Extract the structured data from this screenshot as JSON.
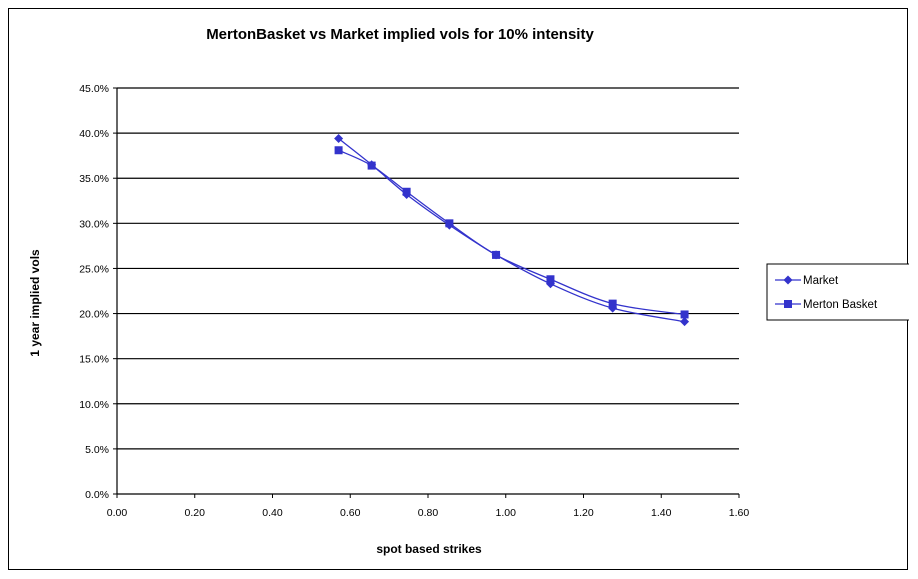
{
  "chart_data": {
    "type": "line",
    "title": "MertonBasket vs Market implied vols for 10% intensity",
    "xlabel": "spot based strikes",
    "ylabel": "1 year implied vols",
    "xlim": [
      0,
      1.6
    ],
    "ylim": [
      0,
      0.45
    ],
    "x_ticks": [
      "0.00",
      "0.20",
      "0.40",
      "0.60",
      "0.80",
      "1.00",
      "1.20",
      "1.40",
      "1.60"
    ],
    "y_ticks": [
      "0.0%",
      "5.0%",
      "10.0%",
      "15.0%",
      "20.0%",
      "25.0%",
      "30.0%",
      "35.0%",
      "40.0%",
      "45.0%"
    ],
    "grid": "horizontal",
    "legend_position": "right",
    "series_color": "#3333cc",
    "series": [
      {
        "name": "Market",
        "marker": "diamond",
        "x": [
          0.57,
          0.655,
          0.745,
          0.855,
          0.975,
          1.115,
          1.275,
          1.46
        ],
        "values": [
          0.394,
          0.365,
          0.332,
          0.298,
          0.265,
          0.233,
          0.206,
          0.191
        ]
      },
      {
        "name": "Merton Basket",
        "marker": "square",
        "x": [
          0.57,
          0.655,
          0.745,
          0.855,
          0.975,
          1.115,
          1.275,
          1.46
        ],
        "values": [
          0.381,
          0.364,
          0.335,
          0.3,
          0.265,
          0.238,
          0.211,
          0.199
        ]
      }
    ]
  }
}
